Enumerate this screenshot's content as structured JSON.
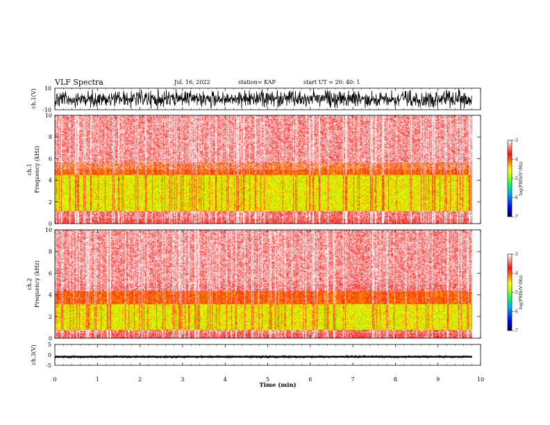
{
  "header": {
    "title": "VLF Spectra",
    "date": "Jul. 16, 2022",
    "station": "station= KAP",
    "start": "start UT = 20: 40: 1"
  },
  "chart_data": [
    {
      "type": "line",
      "panel": "ch1-waveform",
      "ylabel": "ch.1(V)",
      "ytick_labels": [
        "10",
        "-10"
      ],
      "ylim": [
        -10,
        10
      ],
      "description_values": "dense noise waveform oscillating across full range"
    },
    {
      "type": "heatmap",
      "panel": "ch1-spectrogram",
      "ylabel_line1": "ch.1",
      "ylabel_line2": "Frequency (kHz)",
      "yticks": [
        "0",
        "2",
        "4",
        "6",
        "8",
        "10"
      ],
      "ylim": [
        0,
        10
      ],
      "colorbar_label": "log(PSD)(V²/Hz)",
      "colorbar_ticks": [
        "-3",
        "-4",
        "-5",
        "-6",
        "-7"
      ],
      "crange": [
        -7,
        -3
      ],
      "green_band_khz": [
        1.2,
        4.5
      ]
    },
    {
      "type": "heatmap",
      "panel": "ch2-spectrogram",
      "ylabel_line1": "ch.2",
      "ylabel_line2": "Frequency (kHz)",
      "yticks": [
        "0",
        "2",
        "4",
        "6",
        "8",
        "10"
      ],
      "ylim": [
        0,
        10
      ],
      "colorbar_label": "log(PSD)(V²/Hz)",
      "colorbar_ticks": [
        "-3",
        "-4",
        "-5",
        "-6",
        "-7"
      ],
      "crange": [
        -7,
        -3
      ],
      "green_band_khz": [
        0.8,
        3.2
      ]
    },
    {
      "type": "line",
      "panel": "ch3-waveform",
      "ylabel": "ch.3(V)",
      "ytick_labels": [
        "5",
        "0",
        "-5"
      ],
      "ylim": [
        -5,
        5
      ],
      "band": [
        -1.3,
        -0.5
      ]
    }
  ],
  "xaxis": {
    "label": "Time (min)",
    "ticks": [
      "0",
      "1",
      "2",
      "3",
      "4",
      "5",
      "6",
      "7",
      "8",
      "9",
      "10"
    ],
    "xlim": [
      0,
      10
    ],
    "data_end": 9.8
  },
  "colors": {
    "background": "#ffffff",
    "waveform": "#000000",
    "colormap": [
      "#000060",
      "#0000ff",
      "#00a0ff",
      "#00ff60",
      "#d0ff00",
      "#ffff00",
      "#ff8000",
      "#ff2020",
      "#ffffff"
    ]
  }
}
